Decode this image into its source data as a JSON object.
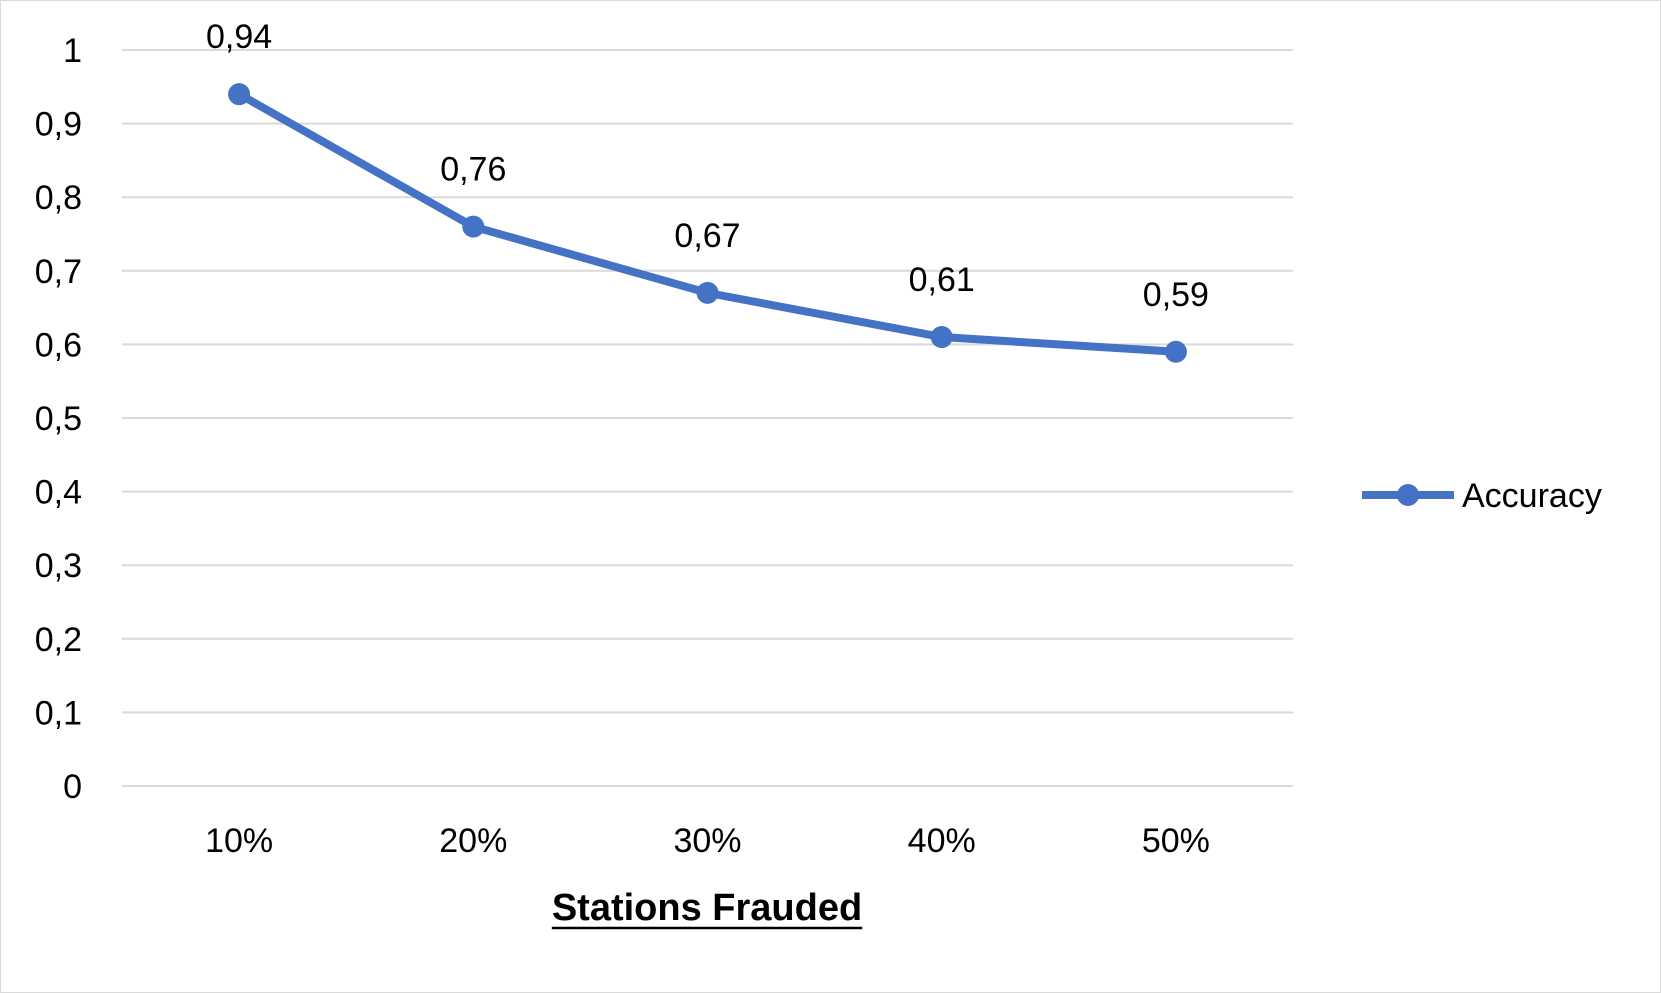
{
  "chart_data": {
    "type": "line",
    "title": "",
    "xlabel": "Stations Frauded",
    "ylabel": "",
    "categories": [
      "10%",
      "20%",
      "30%",
      "40%",
      "50%"
    ],
    "series": [
      {
        "name": "Accuracy",
        "values": [
          0.94,
          0.76,
          0.67,
          0.61,
          0.59
        ],
        "data_labels": [
          "0,94",
          "0,76",
          "0,67",
          "0,61",
          "0,59"
        ],
        "color": "#4472C4"
      }
    ],
    "ylim": [
      0,
      1
    ],
    "yticks": [
      0,
      0.1,
      0.2,
      0.3,
      0.4,
      0.5,
      0.6,
      0.7,
      0.8,
      0.9,
      1
    ],
    "ytick_labels": [
      "0",
      "0,1",
      "0,2",
      "0,3",
      "0,4",
      "0,5",
      "0,6",
      "0,7",
      "0,8",
      "0,9",
      "1"
    ],
    "grid": true,
    "gridline_color": "#d9d9d9",
    "legend": {
      "position": "right",
      "entries": [
        "Accuracy"
      ]
    }
  }
}
